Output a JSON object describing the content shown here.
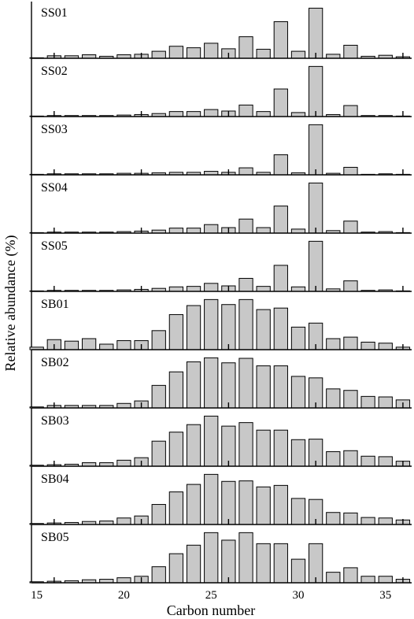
{
  "chart_data": {
    "type": "bar",
    "layout": "stacked-panels",
    "xlabel": "Carbon number",
    "ylabel": "Relative abundance (%)",
    "xlim": [
      14.7,
      36.5
    ],
    "xticks": [
      15,
      20,
      25,
      30,
      35
    ],
    "major_tick_carbons": [
      16,
      21,
      26,
      31,
      36
    ],
    "ylim": [
      0,
      100
    ],
    "bar_fill": "#c8c8c8",
    "categories": [
      15,
      16,
      17,
      18,
      19,
      20,
      21,
      22,
      23,
      24,
      25,
      26,
      27,
      28,
      29,
      30,
      31,
      32,
      33,
      34,
      35,
      36
    ],
    "series": [
      {
        "name": "SS01",
        "values": [
          1,
          5,
          5,
          7,
          4,
          7,
          8,
          14,
          24,
          21,
          30,
          19,
          43,
          18,
          73,
          14,
          100,
          8,
          26,
          4,
          6,
          3
        ]
      },
      {
        "name": "SS02",
        "values": [
          1,
          2,
          2,
          2,
          2,
          3,
          4,
          6,
          10,
          10,
          14,
          11,
          23,
          10,
          55,
          8,
          100,
          4,
          22,
          2,
          2,
          1
        ]
      },
      {
        "name": "SS03",
        "values": [
          1,
          2,
          2,
          2,
          2,
          3,
          3,
          4,
          5,
          5,
          7,
          5,
          14,
          5,
          40,
          4,
          100,
          3,
          15,
          1,
          2,
          1
        ]
      },
      {
        "name": "SS04",
        "values": [
          1,
          2,
          2,
          2,
          2,
          3,
          4,
          6,
          10,
          10,
          17,
          11,
          28,
          11,
          54,
          8,
          100,
          5,
          24,
          2,
          3,
          1
        ]
      },
      {
        "name": "SS05",
        "values": [
          1,
          2,
          2,
          2,
          2,
          3,
          4,
          6,
          9,
          10,
          16,
          11,
          26,
          10,
          52,
          9,
          100,
          5,
          21,
          2,
          3,
          1
        ]
      },
      {
        "name": "SB01",
        "values": [
          5,
          20,
          17,
          22,
          11,
          18,
          18,
          38,
          70,
          88,
          100,
          90,
          100,
          80,
          83,
          45,
          53,
          22,
          25,
          15,
          13,
          5
        ]
      },
      {
        "name": "SB02",
        "values": [
          2,
          5,
          5,
          5,
          5,
          9,
          14,
          45,
          72,
          92,
          100,
          90,
          99,
          84,
          84,
          63,
          60,
          38,
          35,
          23,
          22,
          16
        ]
      },
      {
        "name": "SB03",
        "values": [
          2,
          3,
          4,
          7,
          7,
          12,
          17,
          50,
          68,
          83,
          100,
          80,
          87,
          72,
          72,
          53,
          54,
          29,
          31,
          20,
          19,
          10
        ]
      },
      {
        "name": "SB04",
        "values": [
          2,
          3,
          4,
          6,
          7,
          13,
          17,
          40,
          65,
          80,
          100,
          86,
          87,
          75,
          78,
          52,
          50,
          24,
          23,
          14,
          13,
          9
        ]
      },
      {
        "name": "SB05",
        "values": [
          2,
          3,
          4,
          6,
          7,
          10,
          13,
          32,
          58,
          75,
          100,
          85,
          100,
          78,
          78,
          47,
          78,
          21,
          30,
          13,
          13,
          7
        ]
      }
    ]
  }
}
